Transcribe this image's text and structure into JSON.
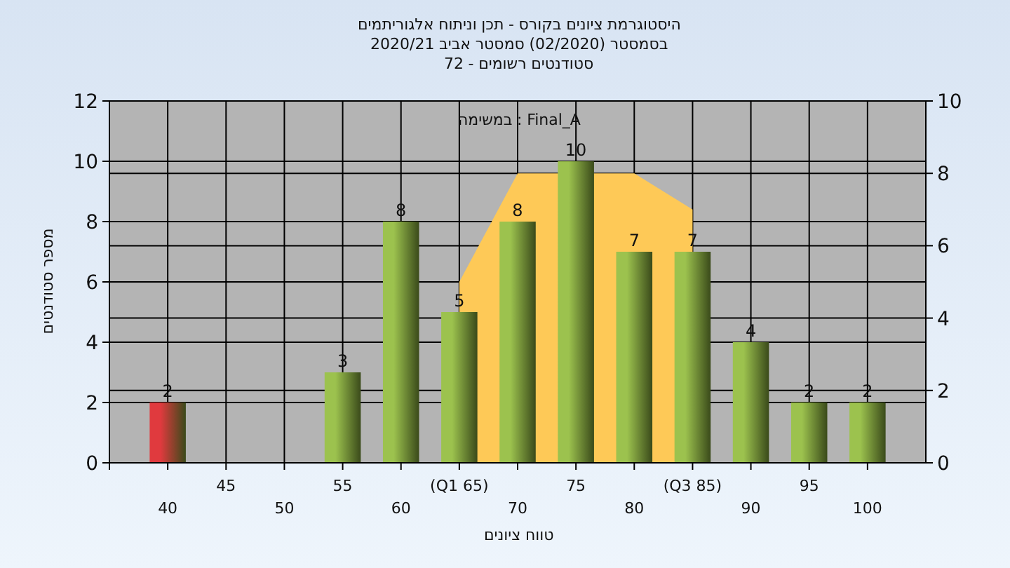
{
  "chart_data": {
    "type": "bar",
    "title": "אלגוריתמים וניתוח תכן - בקורס ציונים היסטוגרמת",
    "subtitle": "2020/21 אביב סמסטר (02/2020) בסמסטר\n72 - רשומים סטודנטים",
    "xlabel": "ציונים טווח",
    "ylabel": "סטודנטים מספר",
    "annotations": [
      "במשימה : Final_A"
    ],
    "categories": [
      "40",
      "45",
      "50",
      "55",
      "60",
      "(Q1 65)",
      "70",
      "75",
      "80",
      "(Q3 85)",
      "90",
      "95",
      "100"
    ],
    "series": [
      {
        "type": "area",
        "axis": "y2",
        "color": "#fec957",
        "values": [
          null,
          null,
          null,
          null,
          null,
          5,
          8,
          null,
          8,
          7,
          null,
          null,
          null
        ]
      },
      {
        "color": "#9cc24e",
        "colors": [
          "#e03a3e",
          "#9cc24e",
          "#9cc24e",
          "#9cc24e",
          "#9cc24e",
          "#9cc24e",
          "#9cc24e",
          "#9cc24e",
          "#9cc24e",
          "#9cc24e",
          "#9cc24e",
          "#9cc24e",
          "#9cc24e"
        ],
        "values": [
          2,
          null,
          null,
          3,
          8,
          5,
          8,
          10,
          7,
          7,
          4,
          2,
          2
        ],
        "value_labels": [
          "2",
          null,
          null,
          "3",
          "8",
          "5",
          "8",
          "10",
          "7",
          "7",
          "4",
          "2",
          "2"
        ]
      }
    ],
    "ylim": [
      0,
      12
    ],
    "yticks": [
      0,
      2,
      4,
      6,
      8,
      10,
      12
    ],
    "y2lim": [
      0,
      10
    ],
    "y2ticks": [
      0,
      2,
      4,
      6,
      8,
      10
    ],
    "grid": true
  }
}
